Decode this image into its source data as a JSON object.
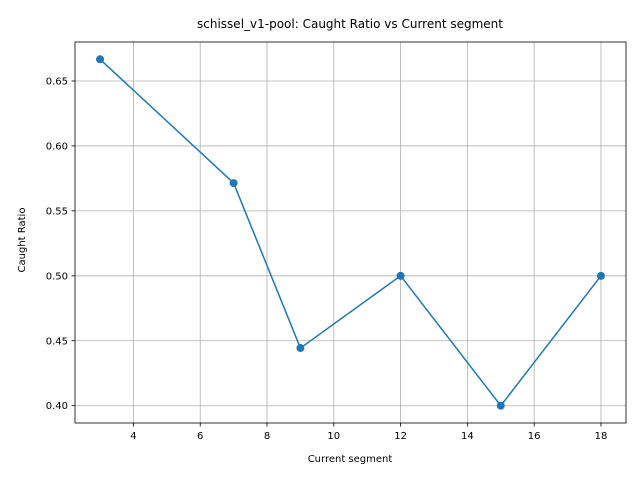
{
  "chart_data": {
    "type": "line",
    "title": "schissel_v1-pool: Caught Ratio vs Current segment",
    "xlabel": "Current segment",
    "ylabel": "Caught Ratio",
    "x": [
      3,
      7,
      9,
      12,
      15,
      18
    ],
    "series": [
      {
        "values": [
          0.6667,
          0.5714,
          0.4444,
          0.5,
          0.4,
          0.5
        ],
        "color": "#1f77b4",
        "marker": "circle"
      }
    ],
    "xlim": [
      2.25,
      18.75
    ],
    "ylim": [
      0.3867,
      0.68
    ],
    "xticks": [
      4,
      6,
      8,
      10,
      12,
      14,
      16,
      18
    ],
    "xtick_labels": [
      "4",
      "6",
      "8",
      "10",
      "12",
      "14",
      "16",
      "18"
    ],
    "yticks": [
      0.4,
      0.45,
      0.5,
      0.55,
      0.6,
      0.65
    ],
    "ytick_labels": [
      "0.40",
      "0.45",
      "0.50",
      "0.55",
      "0.60",
      "0.65"
    ],
    "grid": true
  }
}
